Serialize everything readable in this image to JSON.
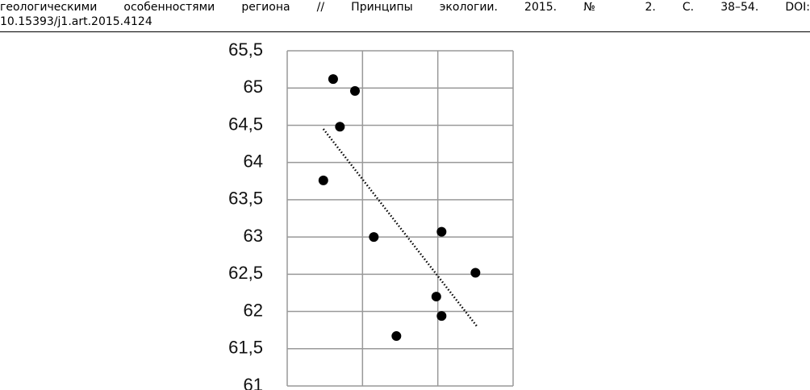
{
  "text": {
    "lines": [
      "геологическими особенностями региона // Принципы экологии. 2015. № 2. С. 38–54. DOI:",
      "10.15393/j1.art.2015.4124"
    ]
  },
  "chart_data": {
    "type": "scatter",
    "x": [
      0.61,
      0.9,
      0.7,
      0.48,
      1.15,
      2.05,
      2.5,
      1.98,
      2.05,
      1.45
    ],
    "values": [
      65.12,
      64.96,
      64.48,
      63.76,
      63.0,
      63.07,
      62.52,
      62.2,
      61.94,
      61.67
    ],
    "color": "#000000",
    "trendline": {
      "x": [
        0.48,
        2.52
      ],
      "y": [
        64.45,
        61.8
      ]
    },
    "xlim": [
      0,
      3
    ],
    "xticks": [
      0,
      1,
      2,
      3
    ],
    "ylim": [
      61,
      65.5
    ],
    "yticks": [
      {
        "value": 65.5,
        "label": "65,5"
      },
      65,
      {
        "value": 64.5,
        "label": "64,5"
      },
      64,
      {
        "value": 63.5,
        "label": "63,5"
      },
      63,
      {
        "value": 62.5,
        "label": "62,5"
      },
      62,
      {
        "value": 61.5,
        "label": "61,5"
      },
      61
    ],
    "grid": true
  }
}
